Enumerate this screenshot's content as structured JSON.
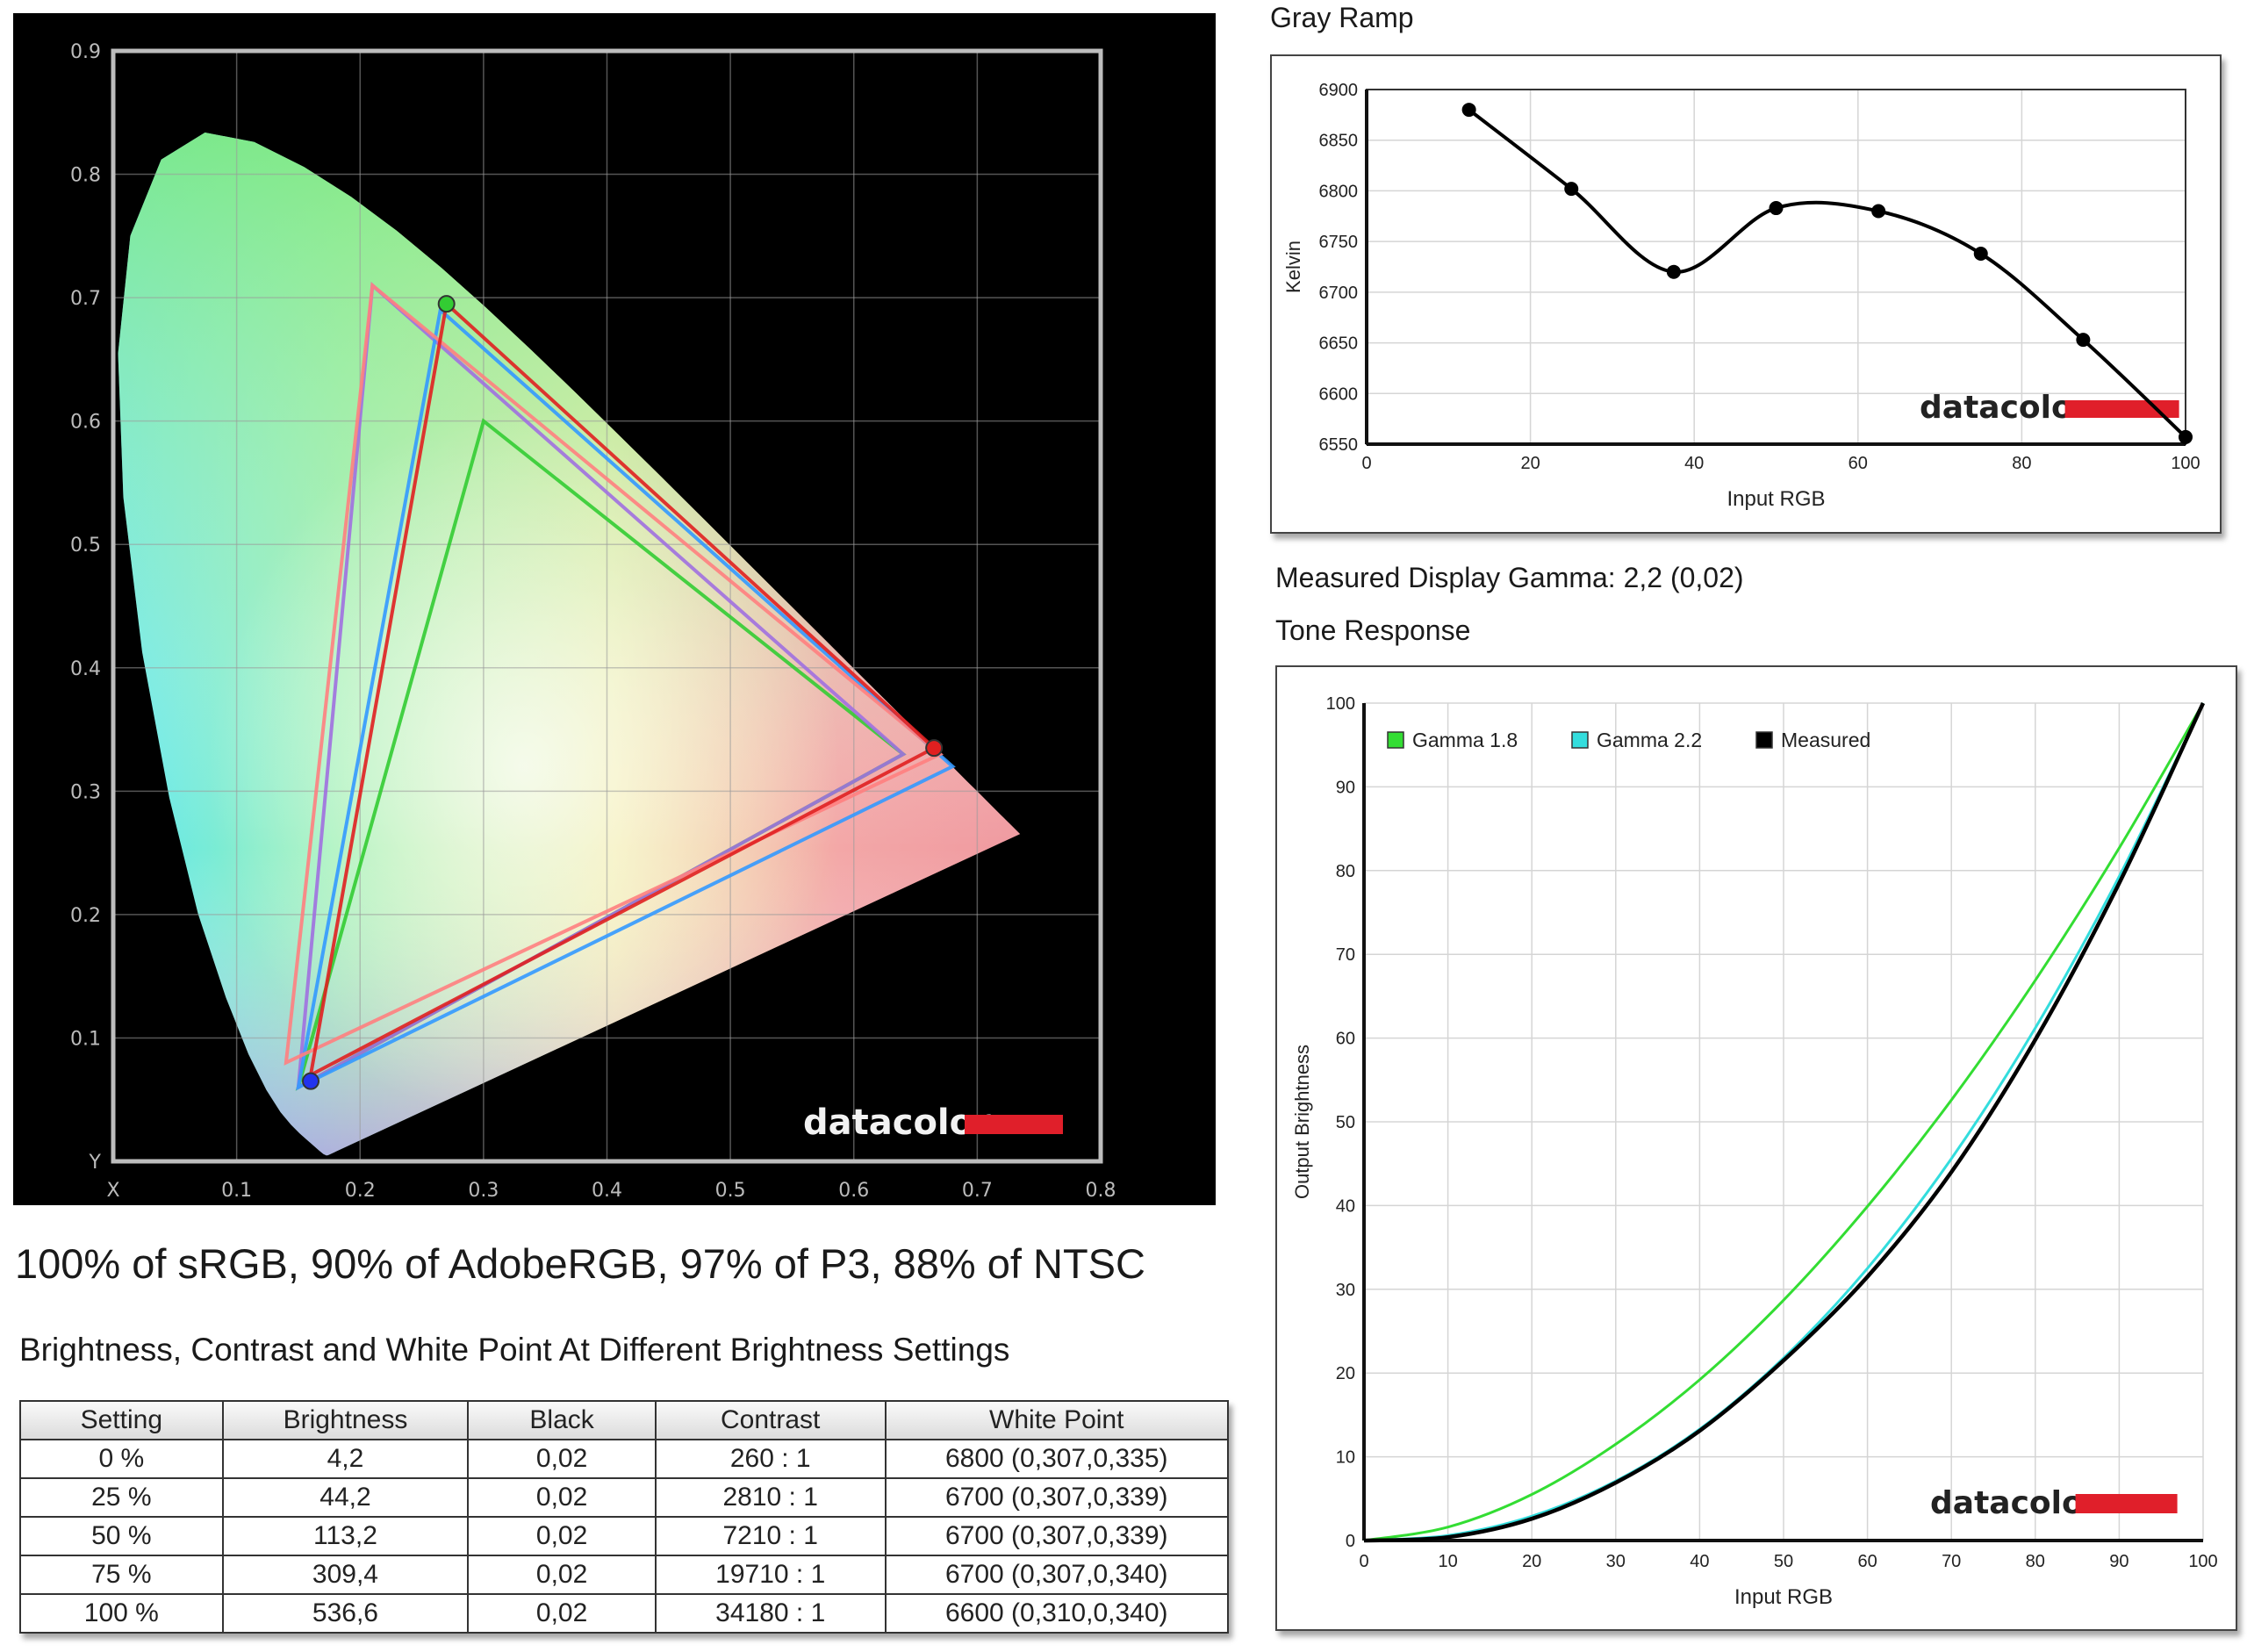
{
  "chart_data": [
    {
      "type": "scatter",
      "title": "",
      "background": "#000000",
      "xlim": [
        0,
        0.8
      ],
      "ylim": [
        0,
        0.9
      ],
      "x_ticks": [
        "X",
        "0.1",
        "0.2",
        "0.3",
        "0.4",
        "0.5",
        "0.6",
        "0.7",
        "0.8"
      ],
      "y_ticks": [
        "Y",
        "0.1",
        "0.2",
        "0.3",
        "0.4",
        "0.5",
        "0.6",
        "0.7",
        "0.8",
        "0.9"
      ],
      "grid": true,
      "watermark": "datacolor",
      "series": [
        {
          "values": [
            [
              0.64,
              0.33
            ],
            [
              0.3,
              0.6
            ],
            [
              0.15,
              0.06
            ]
          ],
          "color": "#33cc33"
        },
        {
          "values": [
            [
              0.64,
              0.33
            ],
            [
              0.21,
              0.71
            ],
            [
              0.15,
              0.06
            ]
          ],
          "color": "#a070e0"
        },
        {
          "values": [
            [
              0.68,
              0.32
            ],
            [
              0.265,
              0.69
            ],
            [
              0.15,
              0.06
            ]
          ],
          "color": "#3399ff"
        },
        {
          "values": [
            [
              0.67,
              0.33
            ],
            [
              0.21,
              0.71
            ],
            [
              0.14,
              0.08
            ]
          ],
          "color": "#ff8080"
        },
        {
          "values": [
            [
              0.665,
              0.335
            ],
            [
              0.27,
              0.695
            ],
            [
              0.16,
              0.07
            ]
          ],
          "color": "#e02020"
        }
      ]
    },
    {
      "type": "line",
      "title": "Gray Ramp",
      "xlabel": "Input RGB",
      "ylabel": "Kelvin",
      "xlim": [
        0,
        100
      ],
      "ylim": [
        6550,
        6900
      ],
      "x_ticks": [
        "0",
        "20",
        "40",
        "60",
        "80",
        "100"
      ],
      "y_ticks": [
        "6550",
        "6600",
        "6650",
        "6700",
        "6750",
        "6800",
        "6850",
        "6900"
      ],
      "grid": true,
      "watermark": "datacolor",
      "x": [
        12.5,
        25,
        37.5,
        50,
        62.5,
        75,
        87.5,
        100
      ],
      "series": [
        {
          "values": [
            6880,
            6802,
            6720,
            6783,
            6780,
            6738,
            6653,
            6557
          ],
          "color": "#000000"
        }
      ]
    },
    {
      "type": "line",
      "title": "Tone Response",
      "xlabel": "Input RGB",
      "ylabel": "Output Brightness",
      "xlim": [
        0,
        100
      ],
      "ylim": [
        0,
        100
      ],
      "x_ticks": [
        "0",
        "10",
        "20",
        "30",
        "40",
        "50",
        "60",
        "70",
        "80",
        "90",
        "100"
      ],
      "y_ticks": [
        "0",
        "10",
        "20",
        "30",
        "40",
        "50",
        "60",
        "70",
        "80",
        "90",
        "100"
      ],
      "grid": true,
      "legend": "top-left",
      "watermark": "datacolor",
      "x": [
        0,
        10,
        20,
        30,
        40,
        50,
        60,
        70,
        80,
        90,
        100
      ],
      "series": [
        {
          "name": "Gamma 1.8",
          "values": [
            0,
            1.6,
            5.5,
            11.5,
            19.2,
            28.7,
            39.9,
            52.6,
            66.9,
            82.7,
            100
          ],
          "color": "#33dd33"
        },
        {
          "name": "Gamma 2.2",
          "values": [
            0,
            0.6,
            2.9,
            7.1,
            13.3,
            21.8,
            32.5,
            45.6,
            61.2,
            79.3,
            100
          ],
          "color": "#33dddd"
        },
        {
          "name": "Measured",
          "values": [
            0,
            0.4,
            2.6,
            6.9,
            13.1,
            21.5,
            31.5,
            44.0,
            59.8,
            78.5,
            100
          ],
          "color": "#000000"
        }
      ]
    },
    {
      "type": "table",
      "title": "Brightness, Contrast and White Point At Different Brightness Settings",
      "columns": [
        "Setting",
        "Brightness",
        "Black",
        "Contrast",
        "White Point"
      ],
      "rows": [
        [
          "0 %",
          "4,2",
          "0,02",
          "260 : 1",
          "6800 (0,307,0,335)"
        ],
        [
          "25 %",
          "44,2",
          "0,02",
          "2810 : 1",
          "6700 (0,307,0,339)"
        ],
        [
          "50 %",
          "113,2",
          "0,02",
          "7210 : 1",
          "6700 (0,307,0,339)"
        ],
        [
          "75 %",
          "309,4",
          "0,02",
          "19710 : 1",
          "6700 (0,307,0,340)"
        ],
        [
          "100 %",
          "536,6",
          "0,02",
          "34180 : 1",
          "6600 (0,310,0,340)"
        ]
      ]
    }
  ],
  "text": {
    "gamma_measured": "Measured Display Gamma: 2,2 (0,02)",
    "gamut_summary": "100% of sRGB, 90% of AdobeRGB, 97% of P3, 88% of NTSC"
  }
}
